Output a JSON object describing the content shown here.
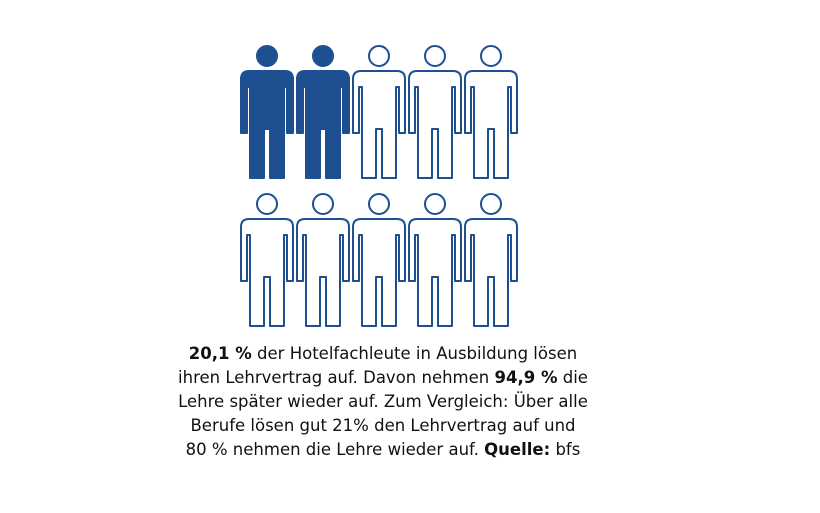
{
  "pictogram": {
    "total": 10,
    "filled": 2,
    "per_row": 5,
    "color": "#1d4f91"
  },
  "caption": {
    "lines": [
      [
        {
          "text": "20,1 %",
          "bold": true
        },
        {
          "text": " der Hotelfachleute in Ausbildung lösen",
          "bold": false
        }
      ],
      [
        {
          "text": "ihren Lehrvertrag auf. Davon nehmen ",
          "bold": false
        },
        {
          "text": "94,9 %",
          "bold": true
        },
        {
          "text": " die",
          "bold": false
        }
      ],
      [
        {
          "text": "Lehre später wieder auf. Zum Vergleich: Über alle",
          "bold": false
        }
      ],
      [
        {
          "text": "Berufe lösen gut 21% den Lehrvertrag auf und",
          "bold": false
        }
      ],
      [
        {
          "text": "80 % nehmen die Lehre wieder auf. ",
          "bold": false
        },
        {
          "text": "Quelle:",
          "bold": true
        },
        {
          "text": " bfs",
          "bold": false
        }
      ]
    ]
  }
}
